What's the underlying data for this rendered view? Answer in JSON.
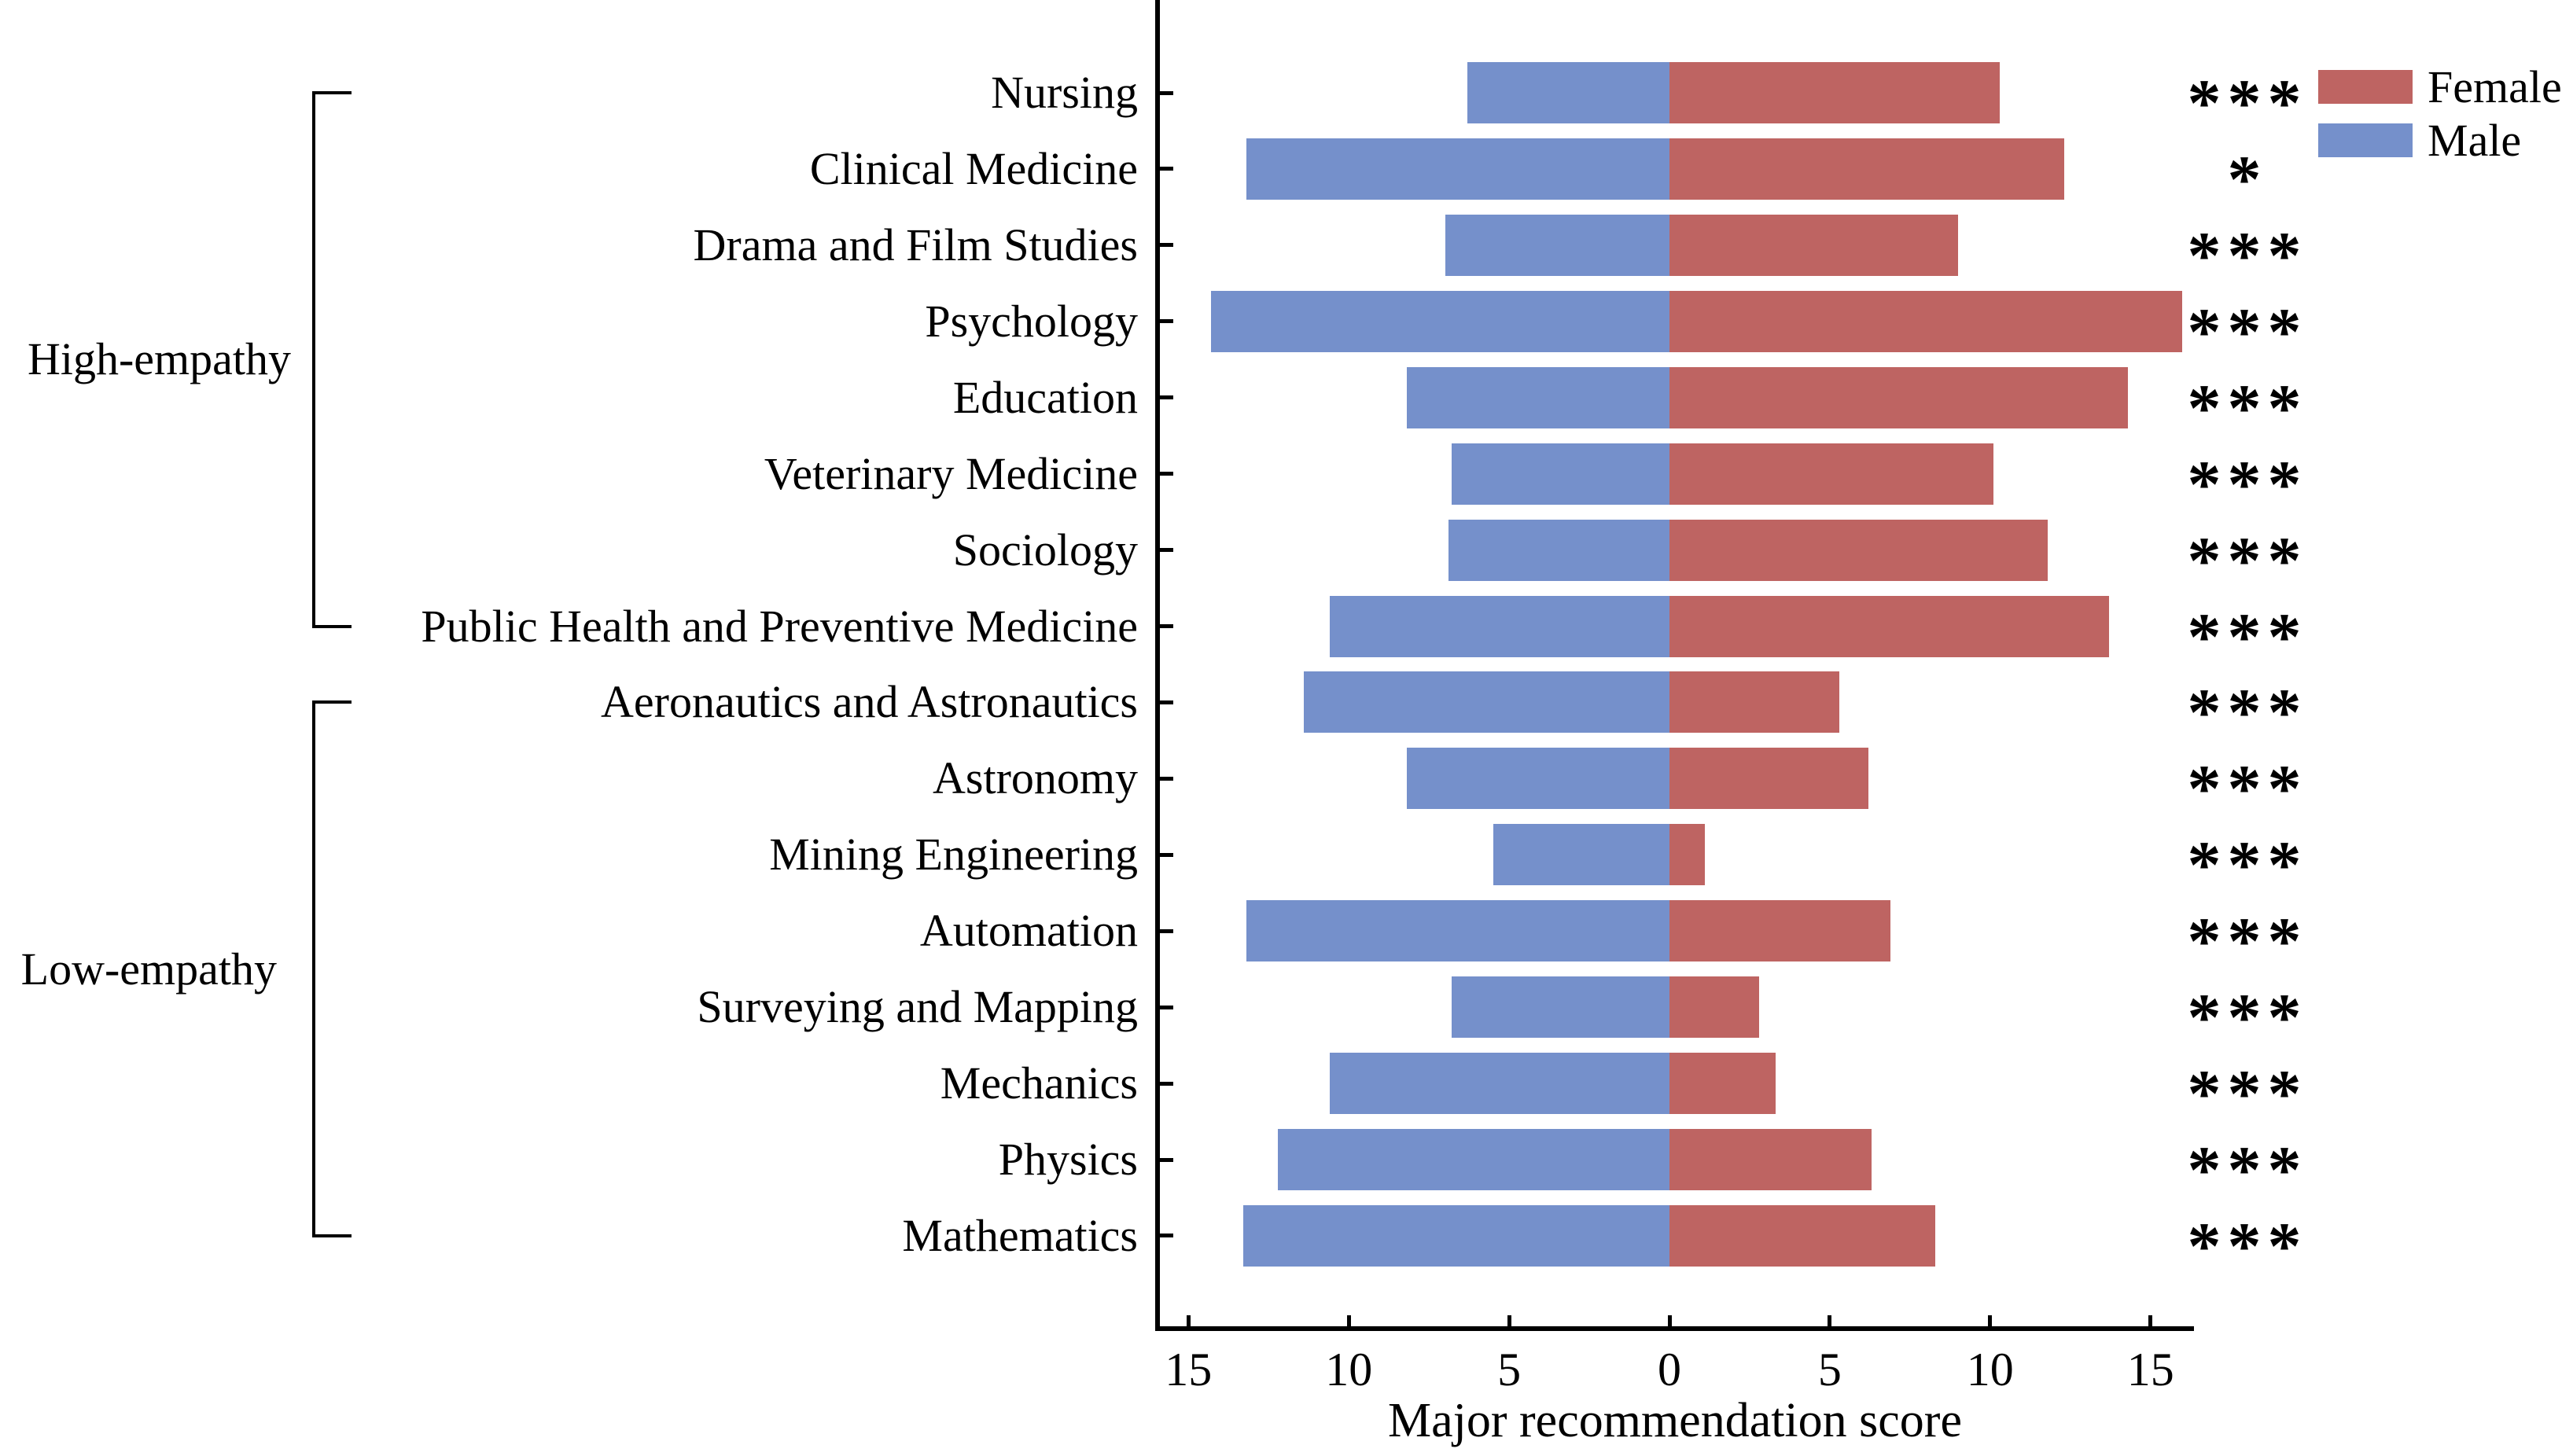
{
  "chart_data": {
    "type": "bar",
    "orientation": "diverging-horizontal",
    "xlabel": "Major recommendation score",
    "x_tick_values": [
      -15,
      -10,
      -5,
      0,
      5,
      10,
      15
    ],
    "x_tick_labels": [
      "15",
      "10",
      "5",
      "0",
      "5",
      "10",
      "15"
    ],
    "xlim": [
      -16.0,
      16.4
    ],
    "grid": false,
    "categories": [
      "Nursing",
      "Clinical Medicine",
      "Drama and Film Studies",
      "Psychology",
      "Education",
      "Veterinary Medicine",
      "Sociology",
      "Public Health and Preventive Medicine",
      "Aeronautics and Astronautics",
      "Astronomy",
      "Mining Engineering",
      "Automation",
      "Surveying and Mapping",
      "Mechanics",
      "Physics",
      "Mathematics"
    ],
    "series": [
      {
        "name": "Male",
        "direction": "left",
        "color": "#7590CB",
        "values": [
          6.3,
          13.2,
          7.0,
          14.3,
          8.2,
          6.8,
          6.9,
          10.6,
          11.4,
          8.2,
          5.5,
          13.2,
          6.8,
          10.6,
          12.2,
          13.3
        ]
      },
      {
        "name": "Female",
        "direction": "right",
        "color": "#BE6462",
        "values": [
          10.3,
          12.3,
          9.0,
          16.0,
          14.3,
          10.1,
          11.8,
          13.7,
          5.3,
          6.2,
          1.1,
          6.9,
          2.8,
          3.3,
          6.3,
          8.3
        ]
      }
    ],
    "significance": [
      "***",
      "*",
      "***",
      "***",
      "***",
      "***",
      "***",
      "***",
      "***",
      "***",
      "***",
      "***",
      "***",
      "***",
      "***",
      "***"
    ],
    "group_brackets": [
      {
        "label": "High-empathy",
        "rows": [
          0,
          7
        ]
      },
      {
        "label": "Low-empathy",
        "rows": [
          8,
          15
        ]
      }
    ],
    "legend": [
      {
        "label": "Female",
        "color": "#BE6462"
      },
      {
        "label": "Male",
        "color": "#7590CB"
      }
    ],
    "legend_position": "upper right"
  }
}
